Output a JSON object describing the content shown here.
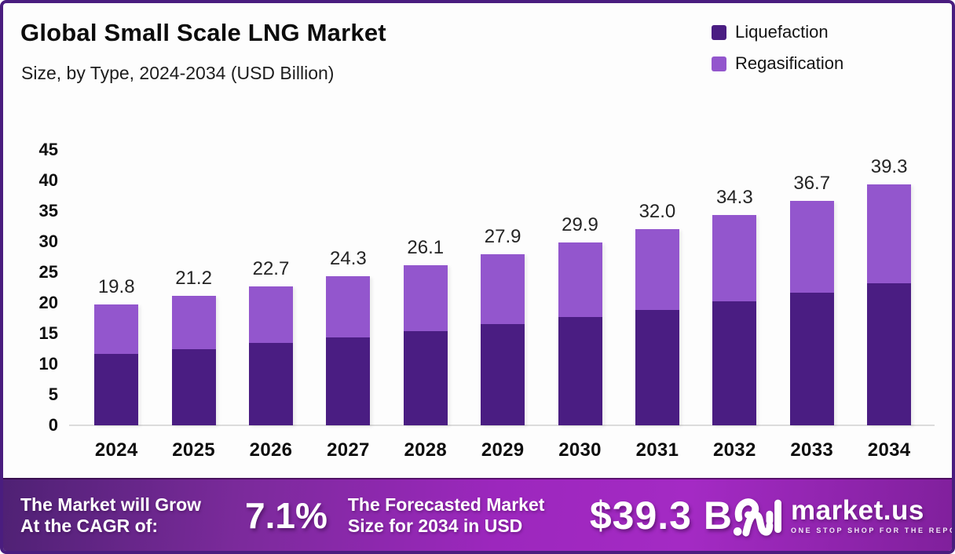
{
  "header": {
    "title": "Global Small Scale LNG Market",
    "subtitle": "Size, by Type, 2024-2034 (USD Billion)"
  },
  "chart_data": {
    "type": "bar",
    "stacked": true,
    "title": "Global Small Scale LNG Market Size, by Type, 2024-2034 (USD Billion)",
    "categories": [
      "2024",
      "2025",
      "2026",
      "2027",
      "2028",
      "2029",
      "2030",
      "2031",
      "2032",
      "2033",
      "2034"
    ],
    "series": [
      {
        "name": "Liquefaction",
        "color": "#4a1d82",
        "values": [
          11.7,
          12.5,
          13.4,
          14.3,
          15.4,
          16.5,
          17.7,
          18.9,
          20.3,
          21.7,
          23.2
        ]
      },
      {
        "name": "Regasification",
        "color": "#9356cd",
        "values": [
          8.1,
          8.7,
          9.3,
          10.0,
          10.7,
          11.4,
          12.2,
          13.1,
          14.0,
          15.0,
          16.1
        ]
      }
    ],
    "total_labels": [
      "19.8",
      "21.2",
      "22.7",
      "24.3",
      "26.1",
      "27.9",
      "29.9",
      "32.0",
      "34.3",
      "36.7",
      "39.3"
    ],
    "ylim": [
      0,
      45
    ],
    "yticks": [
      0,
      5,
      10,
      15,
      20,
      25,
      30,
      35,
      40,
      45
    ],
    "grid": false,
    "legend_position": "top-right"
  },
  "footer": {
    "cagr_label_line1": "The Market will Grow",
    "cagr_label_line2": "At the CAGR of:",
    "cagr_value": "7.1%",
    "forecast_label_line1": "The Forecasted Market",
    "forecast_label_line2": "Size for 2034 in USD",
    "forecast_value": "$39.3 B",
    "brand_name": "market.us",
    "brand_tagline": "ONE STOP SHOP FOR THE REPORTS"
  },
  "colors": {
    "frame_border": "#4a1d7f",
    "liquefaction": "#4a1d82",
    "regasification": "#9356cd",
    "banner_gradient_start": "#4f2174",
    "banner_gradient_mid": "#9c27bd",
    "banner_gradient_end": "#80209c"
  }
}
